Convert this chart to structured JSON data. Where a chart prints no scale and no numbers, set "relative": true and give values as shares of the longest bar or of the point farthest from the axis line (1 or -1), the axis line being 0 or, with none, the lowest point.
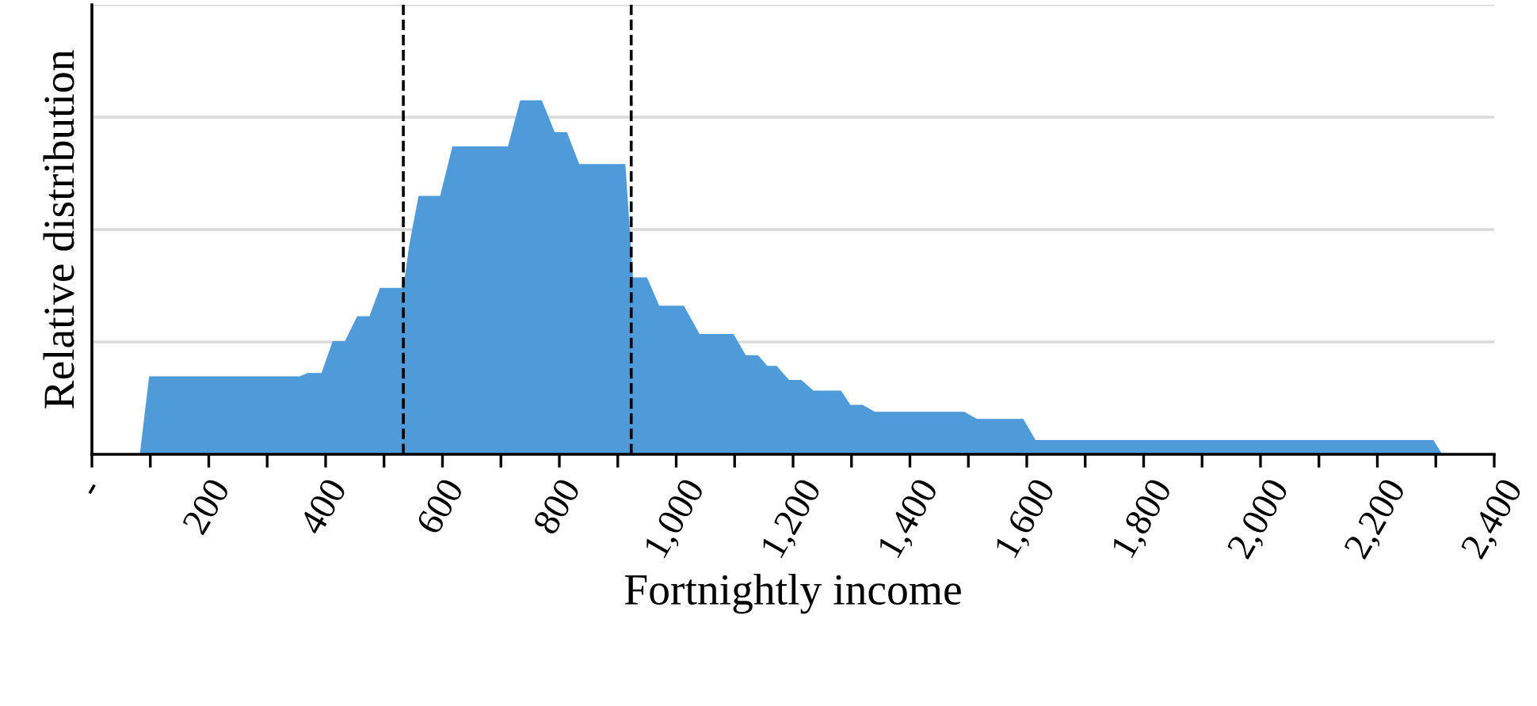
{
  "chart_data": {
    "type": "area",
    "relative": true,
    "xlabel": "Fortnightly income",
    "ylabel": "Relative distribution",
    "color": "#4f9bd9",
    "grid": "y",
    "x": [
      82,
      98,
      356,
      369,
      393,
      412,
      433,
      454,
      475,
      493,
      533,
      543,
      559,
      596,
      617,
      712,
      733,
      770,
      792,
      813,
      834,
      913,
      926,
      950,
      971,
      1013,
      1040,
      1098,
      1119,
      1140,
      1156,
      1172,
      1193,
      1214,
      1235,
      1282,
      1298,
      1319,
      1340,
      1493,
      1515,
      1594,
      1615,
      2296,
      2311
    ],
    "values": [
      0,
      0.22,
      0.22,
      0.23,
      0.23,
      0.32,
      0.32,
      0.39,
      0.39,
      0.47,
      0.47,
      0.59,
      0.73,
      0.73,
      0.87,
      0.87,
      1.0,
      1.0,
      0.91,
      0.91,
      0.82,
      0.82,
      0.5,
      0.5,
      0.42,
      0.42,
      0.34,
      0.34,
      0.28,
      0.28,
      0.25,
      0.25,
      0.21,
      0.21,
      0.18,
      0.18,
      0.14,
      0.14,
      0.12,
      0.12,
      0.1,
      0.1,
      0.04,
      0.04,
      0
    ],
    "xlim": [
      0,
      2400
    ],
    "xticks": [
      {
        "value": 0,
        "label": "-"
      },
      {
        "value": 100,
        "label": null
      },
      {
        "value": 200,
        "label": "200"
      },
      {
        "value": 300,
        "label": null
      },
      {
        "value": 400,
        "label": "400"
      },
      {
        "value": 500,
        "label": null
      },
      {
        "value": 600,
        "label": "600"
      },
      {
        "value": 700,
        "label": null
      },
      {
        "value": 800,
        "label": "800"
      },
      {
        "value": 900,
        "label": null
      },
      {
        "value": 1000,
        "label": "1,000"
      },
      {
        "value": 1100,
        "label": null
      },
      {
        "value": 1200,
        "label": "1,200"
      },
      {
        "value": 1300,
        "label": null
      },
      {
        "value": 1400,
        "label": "1,400"
      },
      {
        "value": 1500,
        "label": null
      },
      {
        "value": 1600,
        "label": "1,600"
      },
      {
        "value": 1700,
        "label": null
      },
      {
        "value": 1800,
        "label": "1,800"
      },
      {
        "value": 1900,
        "label": null
      },
      {
        "value": 2000,
        "label": "2,000"
      },
      {
        "value": 2100,
        "label": null
      },
      {
        "value": 2200,
        "label": "2,200"
      },
      {
        "value": 2300,
        "label": null
      },
      {
        "value": 2400,
        "label": "2,400"
      }
    ],
    "ref_lines": [
      {
        "axis": "x",
        "value": 533,
        "color": "#000000",
        "line_style": "dashed"
      },
      {
        "axis": "x",
        "value": 923,
        "color": "#000000",
        "line_style": "dashed"
      }
    ]
  }
}
